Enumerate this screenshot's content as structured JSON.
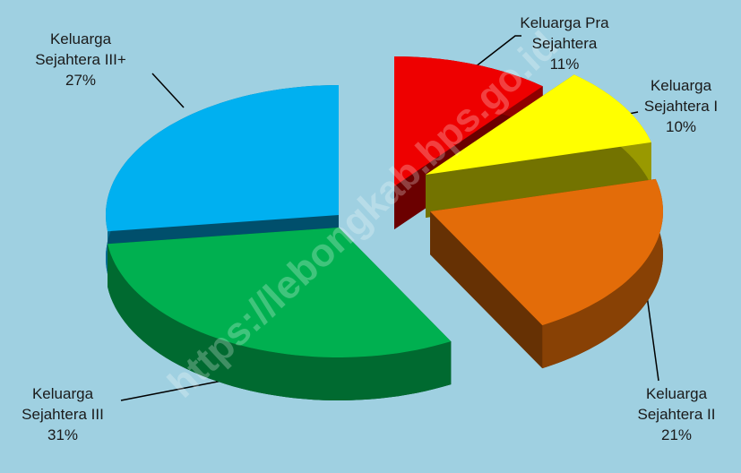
{
  "chart_data": {
    "type": "pie",
    "categories": [
      "Keluarga Pra Sejahtera",
      "Keluarga Sejahtera I",
      "Keluarga Sejahtera II",
      "Keluarga Sejahtera III",
      "Keluarga Sejahtera III+"
    ],
    "values": [
      11,
      10,
      21,
      31,
      27
    ],
    "value_labels": [
      "11%",
      "10%",
      "21%",
      "31%",
      "27%"
    ],
    "colors": [
      "#ee0000",
      "#ffff00",
      "#e36c09",
      "#00b050",
      "#00b0f0"
    ],
    "watermark": "https://lebongkab.bps.go.id"
  }
}
